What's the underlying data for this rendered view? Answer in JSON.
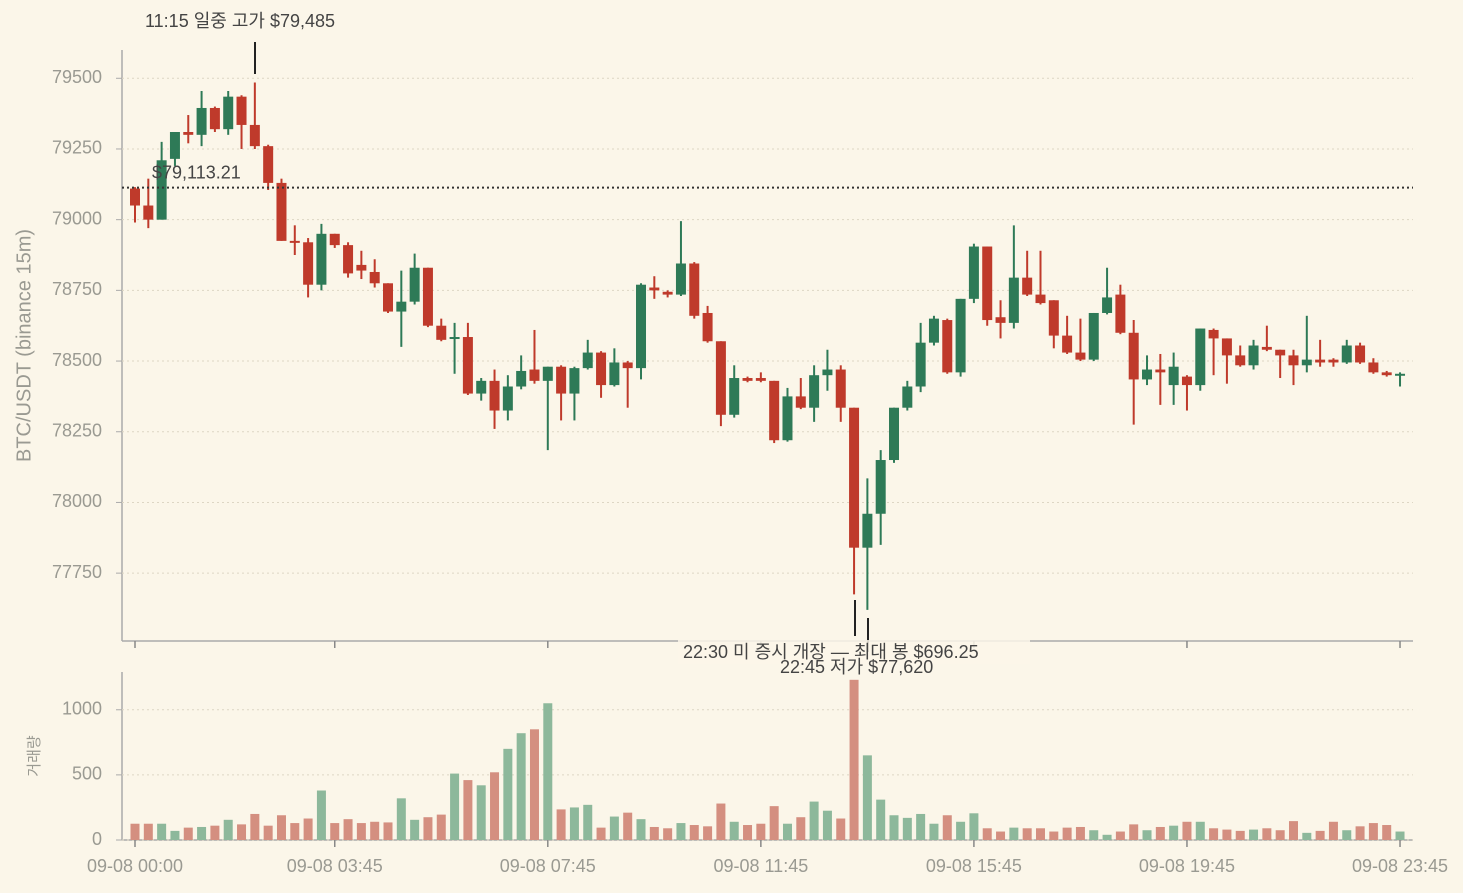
{
  "chart_data": [
    {
      "type": "candlestick",
      "y_label": "BTC/USDT (binance 15m)",
      "up_color": "#2e7a57",
      "down_color": "#bf3a2b",
      "ylim": [
        77510,
        79600
      ],
      "yticks": [
        77750,
        78000,
        78250,
        78500,
        78750,
        79000,
        79250,
        79500
      ],
      "grid": true,
      "reference_line": {
        "value": 79113.21,
        "label": "$79,113.21"
      },
      "annotations": [
        "11:15 일중 고가 $79,485",
        "22:30 미 증시 개장 — 최대 봉 $696.25",
        "22:45 저가 $77,620"
      ],
      "open": [
        79110,
        79050,
        79000,
        79215,
        79310,
        79300,
        79395,
        79320,
        79435,
        79335,
        79260,
        79130,
        78925,
        78920,
        78770,
        78950,
        78910,
        78840,
        78815,
        78775,
        78675,
        78710,
        78830,
        78625,
        78580,
        78585,
        78385,
        78430,
        78325,
        78410,
        78470,
        78430,
        78480,
        78385,
        78475,
        78530,
        78415,
        78495,
        78475,
        78760,
        78745,
        78735,
        78845,
        78670,
        78570,
        78310,
        78440,
        78440,
        78430,
        78220,
        78375,
        78335,
        78450,
        78470,
        78335,
        77840,
        77960,
        78150,
        78335,
        78410,
        78565,
        78645,
        78460,
        78720,
        78905,
        78655,
        78635,
        78795,
        78735,
        78715,
        78590,
        78530,
        78505,
        78670,
        78735,
        78600,
        78435,
        78470,
        78415,
        78445,
        78415,
        78610,
        78580,
        78520,
        78485,
        78550,
        78540,
        78520,
        78485,
        78505,
        78505,
        78495,
        78555,
        78495,
        78460,
        78450
      ],
      "high": [
        79115,
        79145,
        79275,
        79310,
        79370,
        79455,
        79400,
        79455,
        79440,
        79485,
        79265,
        79145,
        78980,
        78935,
        78985,
        78950,
        78920,
        78890,
        78860,
        78775,
        78820,
        78880,
        78830,
        78650,
        78635,
        78635,
        78440,
        78470,
        78450,
        78520,
        78610,
        78480,
        78485,
        78480,
        78575,
        78535,
        78545,
        78500,
        78775,
        78800,
        78750,
        78995,
        78850,
        78695,
        78570,
        78485,
        78445,
        78460,
        78430,
        78405,
        78440,
        78485,
        78540,
        78485,
        78335,
        78085,
        78185,
        78335,
        78430,
        78635,
        78660,
        78650,
        78720,
        78915,
        78905,
        78715,
        78980,
        78890,
        78890,
        78715,
        78660,
        78650,
        78670,
        78830,
        78770,
        78645,
        78520,
        78525,
        78530,
        78450,
        78615,
        78615,
        78580,
        78555,
        78575,
        78625,
        78540,
        78540,
        78660,
        78575,
        78510,
        78575,
        78565,
        78510,
        78465,
        78460
      ],
      "low": [
        78990,
        78970,
        79000,
        79190,
        79270,
        79260,
        79310,
        79300,
        79250,
        79250,
        79105,
        78925,
        78875,
        78725,
        78750,
        78900,
        78795,
        78790,
        78760,
        78670,
        78550,
        78700,
        78620,
        78570,
        78455,
        78380,
        78360,
        78260,
        78290,
        78400,
        78420,
        78185,
        78290,
        78290,
        78470,
        78370,
        78410,
        78335,
        78435,
        78720,
        78725,
        78730,
        78650,
        78565,
        78270,
        78300,
        78425,
        78425,
        78210,
        78215,
        78330,
        78285,
        78395,
        78285,
        77675,
        77620,
        77850,
        78140,
        78325,
        78390,
        78555,
        78455,
        78445,
        78705,
        78625,
        78580,
        78615,
        78730,
        78700,
        78545,
        78525,
        78500,
        78500,
        78665,
        78595,
        78275,
        78415,
        78345,
        78345,
        78325,
        78395,
        78450,
        78420,
        78480,
        78470,
        78535,
        78440,
        78415,
        78460,
        78480,
        78480,
        78490,
        78490,
        78455,
        78445,
        78410
      ],
      "close": [
        79050,
        79000,
        79210,
        79310,
        79300,
        79395,
        79320,
        79435,
        79335,
        79260,
        79130,
        78925,
        78920,
        78770,
        78950,
        78910,
        78810,
        78820,
        78775,
        78675,
        78710,
        78830,
        78625,
        78575,
        78585,
        78385,
        78430,
        78325,
        78410,
        78465,
        78430,
        78480,
        78385,
        78475,
        78530,
        78415,
        78495,
        78475,
        78770,
        78750,
        78735,
        78845,
        78660,
        78570,
        78310,
        78440,
        78430,
        78430,
        78220,
        78375,
        78335,
        78450,
        78470,
        78335,
        77840,
        77960,
        78150,
        78335,
        78410,
        78565,
        78650,
        78460,
        78720,
        78905,
        78645,
        78635,
        78795,
        78735,
        78705,
        78590,
        78530,
        78505,
        78670,
        78725,
        78600,
        78435,
        78470,
        78460,
        78480,
        78415,
        78615,
        78580,
        78520,
        78485,
        78555,
        78540,
        78520,
        78485,
        78505,
        78495,
        78495,
        78555,
        78495,
        78460,
        78450,
        78455
      ]
    },
    {
      "type": "bar",
      "y_label": "거래량",
      "up_color": "#8db89b",
      "down_color": "#d48f80",
      "ylim": [
        0,
        1290
      ],
      "yticks": [
        0,
        500,
        1000
      ],
      "grid": true,
      "categories": [
        "09-08 00:00",
        null,
        null,
        null,
        null,
        null,
        null,
        null,
        null,
        null,
        null,
        null,
        null,
        null,
        null,
        "09-08 03:45",
        null,
        null,
        null,
        null,
        null,
        null,
        null,
        null,
        null,
        null,
        null,
        null,
        null,
        null,
        null,
        "09-08 07:45",
        null,
        null,
        null,
        null,
        null,
        null,
        null,
        null,
        null,
        null,
        null,
        null,
        null,
        null,
        null,
        "09-08 11:45",
        null,
        null,
        null,
        null,
        null,
        null,
        null,
        null,
        null,
        null,
        null,
        null,
        null,
        null,
        null,
        "09-08 15:45",
        null,
        null,
        null,
        null,
        null,
        null,
        null,
        null,
        null,
        null,
        null,
        null,
        null,
        null,
        null,
        "09-08 19:45",
        null,
        null,
        null,
        null,
        null,
        null,
        null,
        null,
        null,
        null,
        null,
        null,
        null,
        null,
        null,
        "09-08 23:45"
      ],
      "values": [
        125,
        125,
        125,
        70,
        95,
        100,
        110,
        155,
        120,
        200,
        110,
        190,
        130,
        165,
        380,
        130,
        160,
        130,
        140,
        135,
        320,
        155,
        175,
        195,
        510,
        460,
        420,
        520,
        700,
        820,
        850,
        1050,
        235,
        250,
        270,
        95,
        180,
        210,
        160,
        100,
        90,
        130,
        115,
        105,
        280,
        140,
        115,
        125,
        260,
        125,
        175,
        295,
        225,
        165,
        1230,
        650,
        310,
        190,
        170,
        200,
        125,
        190,
        140,
        205,
        90,
        65,
        95,
        90,
        90,
        65,
        95,
        100,
        75,
        40,
        65,
        120,
        75,
        100,
        110,
        140,
        140,
        90,
        80,
        70,
        80,
        90,
        75,
        145,
        55,
        70,
        140,
        75,
        105,
        130,
        115,
        65
      ]
    }
  ]
}
